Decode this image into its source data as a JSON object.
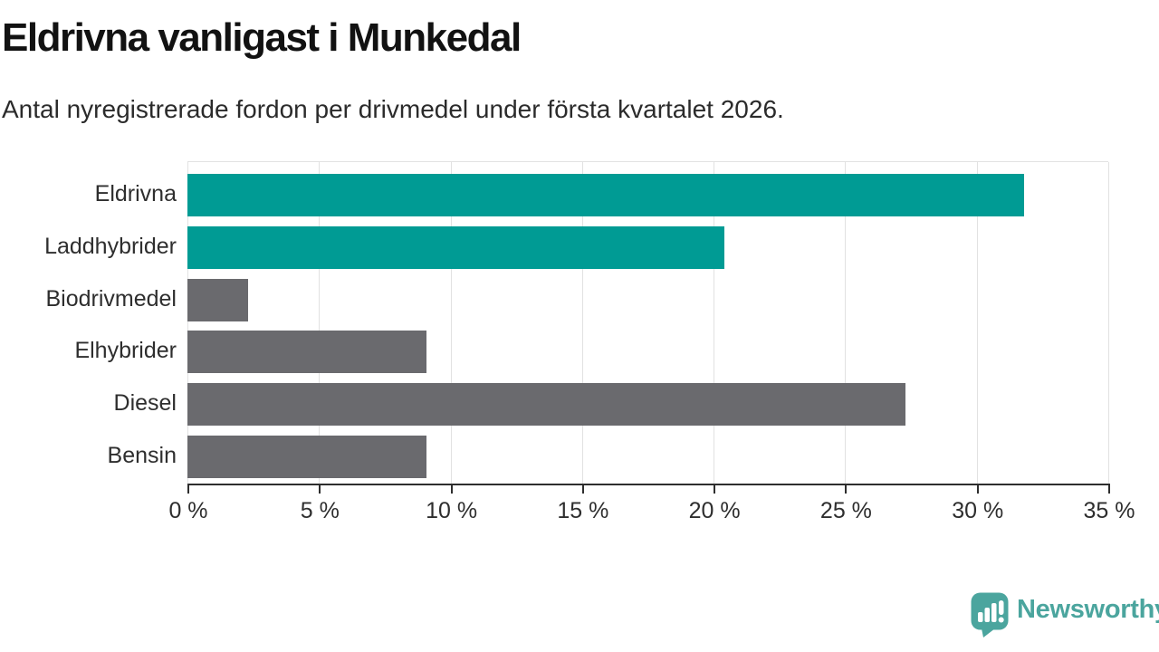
{
  "header": {
    "title": "Eldrivna vanligast i Munkedal",
    "subtitle": "Antal nyregistrerade fordon per drivmedel under första kvartalet 2026."
  },
  "chart_data": {
    "type": "bar",
    "orientation": "horizontal",
    "title": "Eldrivna vanligast i Munkedal",
    "subtitle": "Antal nyregistrerade fordon per drivmedel under första kvartalet 2026.",
    "categories": [
      "Eldrivna",
      "Laddhybrider",
      "Biodrivmedel",
      "Elhybrider",
      "Diesel",
      "Bensin"
    ],
    "values": [
      31.8,
      20.4,
      2.3,
      9.1,
      27.3,
      9.1
    ],
    "unit": "%",
    "bar_colors": [
      "#009b94",
      "#009b94",
      "#6a6a6e",
      "#6a6a6e",
      "#6a6a6e",
      "#6a6a6e"
    ],
    "highlight_color": "#009b94",
    "default_color": "#6a6a6e",
    "xlim": [
      0,
      35
    ],
    "x_tick_labels": [
      "0 %",
      "5 %",
      "10 %",
      "15 %",
      "20 %",
      "25 %",
      "30 %",
      "35 %"
    ],
    "grid": true,
    "gridline_color": "#e2e2e2",
    "axis_color": "#2e2e2e",
    "legend": false
  },
  "footer": {
    "brand": "Newsworthy",
    "brand_color": "#4ba59e",
    "logo_icon": "newsworthy-speech-bubble-barchart-icon"
  }
}
